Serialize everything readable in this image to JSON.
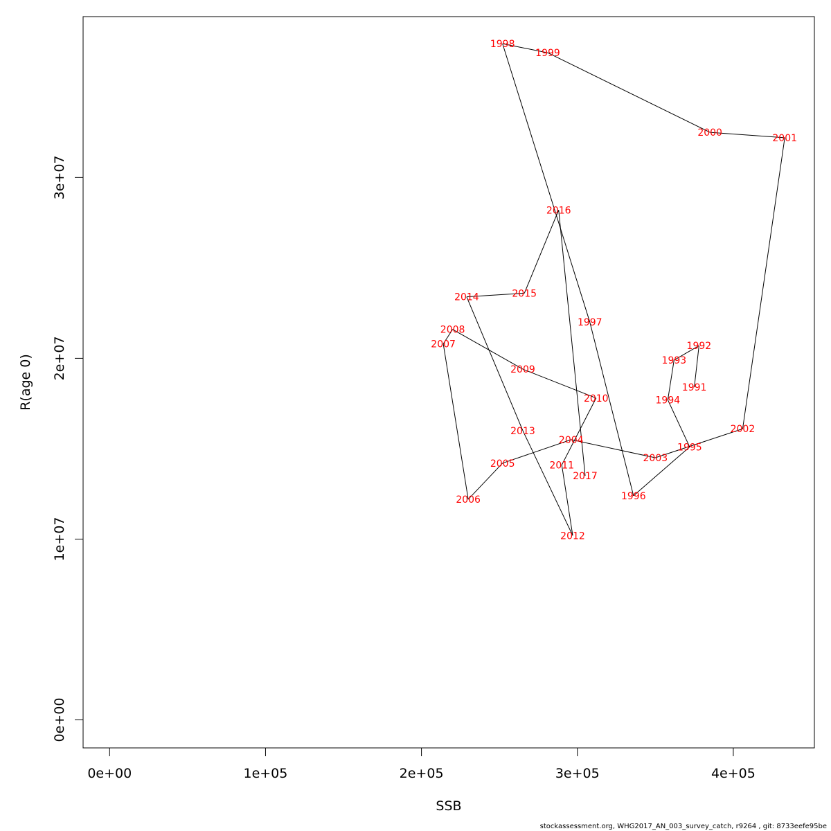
{
  "chart_data": {
    "type": "line",
    "xlabel": "SSB",
    "ylabel": "R(age 0)",
    "xlim": [
      -17000,
      452000
    ],
    "ylim": [
      -1550000,
      38900000
    ],
    "x_ticks": [
      0,
      100000,
      200000,
      300000,
      400000
    ],
    "x_tick_labels": [
      "0e+00",
      "1e+05",
      "2e+05",
      "3e+05",
      "4e+05"
    ],
    "y_ticks": [
      0,
      10000000,
      20000000,
      30000000
    ],
    "y_tick_labels": [
      "0e+00",
      "1e+07",
      "2e+07",
      "3e+07"
    ],
    "grid": false,
    "line_color": "#000000",
    "label_color": "#ff0000",
    "points": [
      {
        "label": "1991",
        "x": 375000,
        "y": 18400000
      },
      {
        "label": "1992",
        "x": 378000,
        "y": 20700000
      },
      {
        "label": "1993",
        "x": 362000,
        "y": 19900000
      },
      {
        "label": "1994",
        "x": 358000,
        "y": 17700000
      },
      {
        "label": "1995",
        "x": 372000,
        "y": 15100000
      },
      {
        "label": "1996",
        "x": 336000,
        "y": 12400000
      },
      {
        "label": "1997",
        "x": 308000,
        "y": 22000000
      },
      {
        "label": "1998",
        "x": 252000,
        "y": 37400000
      },
      {
        "label": "1999",
        "x": 281000,
        "y": 36900000
      },
      {
        "label": "2000",
        "x": 385000,
        "y": 32500000
      },
      {
        "label": "2001",
        "x": 433000,
        "y": 32200000
      },
      {
        "label": "2002",
        "x": 406000,
        "y": 16100000
      },
      {
        "label": "2003",
        "x": 350000,
        "y": 14500000
      },
      {
        "label": "2004",
        "x": 296000,
        "y": 15500000
      },
      {
        "label": "2005",
        "x": 252000,
        "y": 14200000
      },
      {
        "label": "2006",
        "x": 230000,
        "y": 12200000
      },
      {
        "label": "2007",
        "x": 214000,
        "y": 20800000
      },
      {
        "label": "2008",
        "x": 220000,
        "y": 21600000
      },
      {
        "label": "2009",
        "x": 265000,
        "y": 19400000
      },
      {
        "label": "2010",
        "x": 312000,
        "y": 17800000
      },
      {
        "label": "2011",
        "x": 290000,
        "y": 14100000
      },
      {
        "label": "2012",
        "x": 297000,
        "y": 10200000
      },
      {
        "label": "2013",
        "x": 265000,
        "y": 16000000
      },
      {
        "label": "2014",
        "x": 229000,
        "y": 23400000
      },
      {
        "label": "2015",
        "x": 266000,
        "y": 23600000
      },
      {
        "label": "2016",
        "x": 288000,
        "y": 28200000
      },
      {
        "label": "2017",
        "x": 305000,
        "y": 13500000
      }
    ]
  },
  "footer": {
    "text": "stockassessment.org, WHG2017_AN_003_survey_catch, r9264 , git: 8733eefe95be"
  }
}
